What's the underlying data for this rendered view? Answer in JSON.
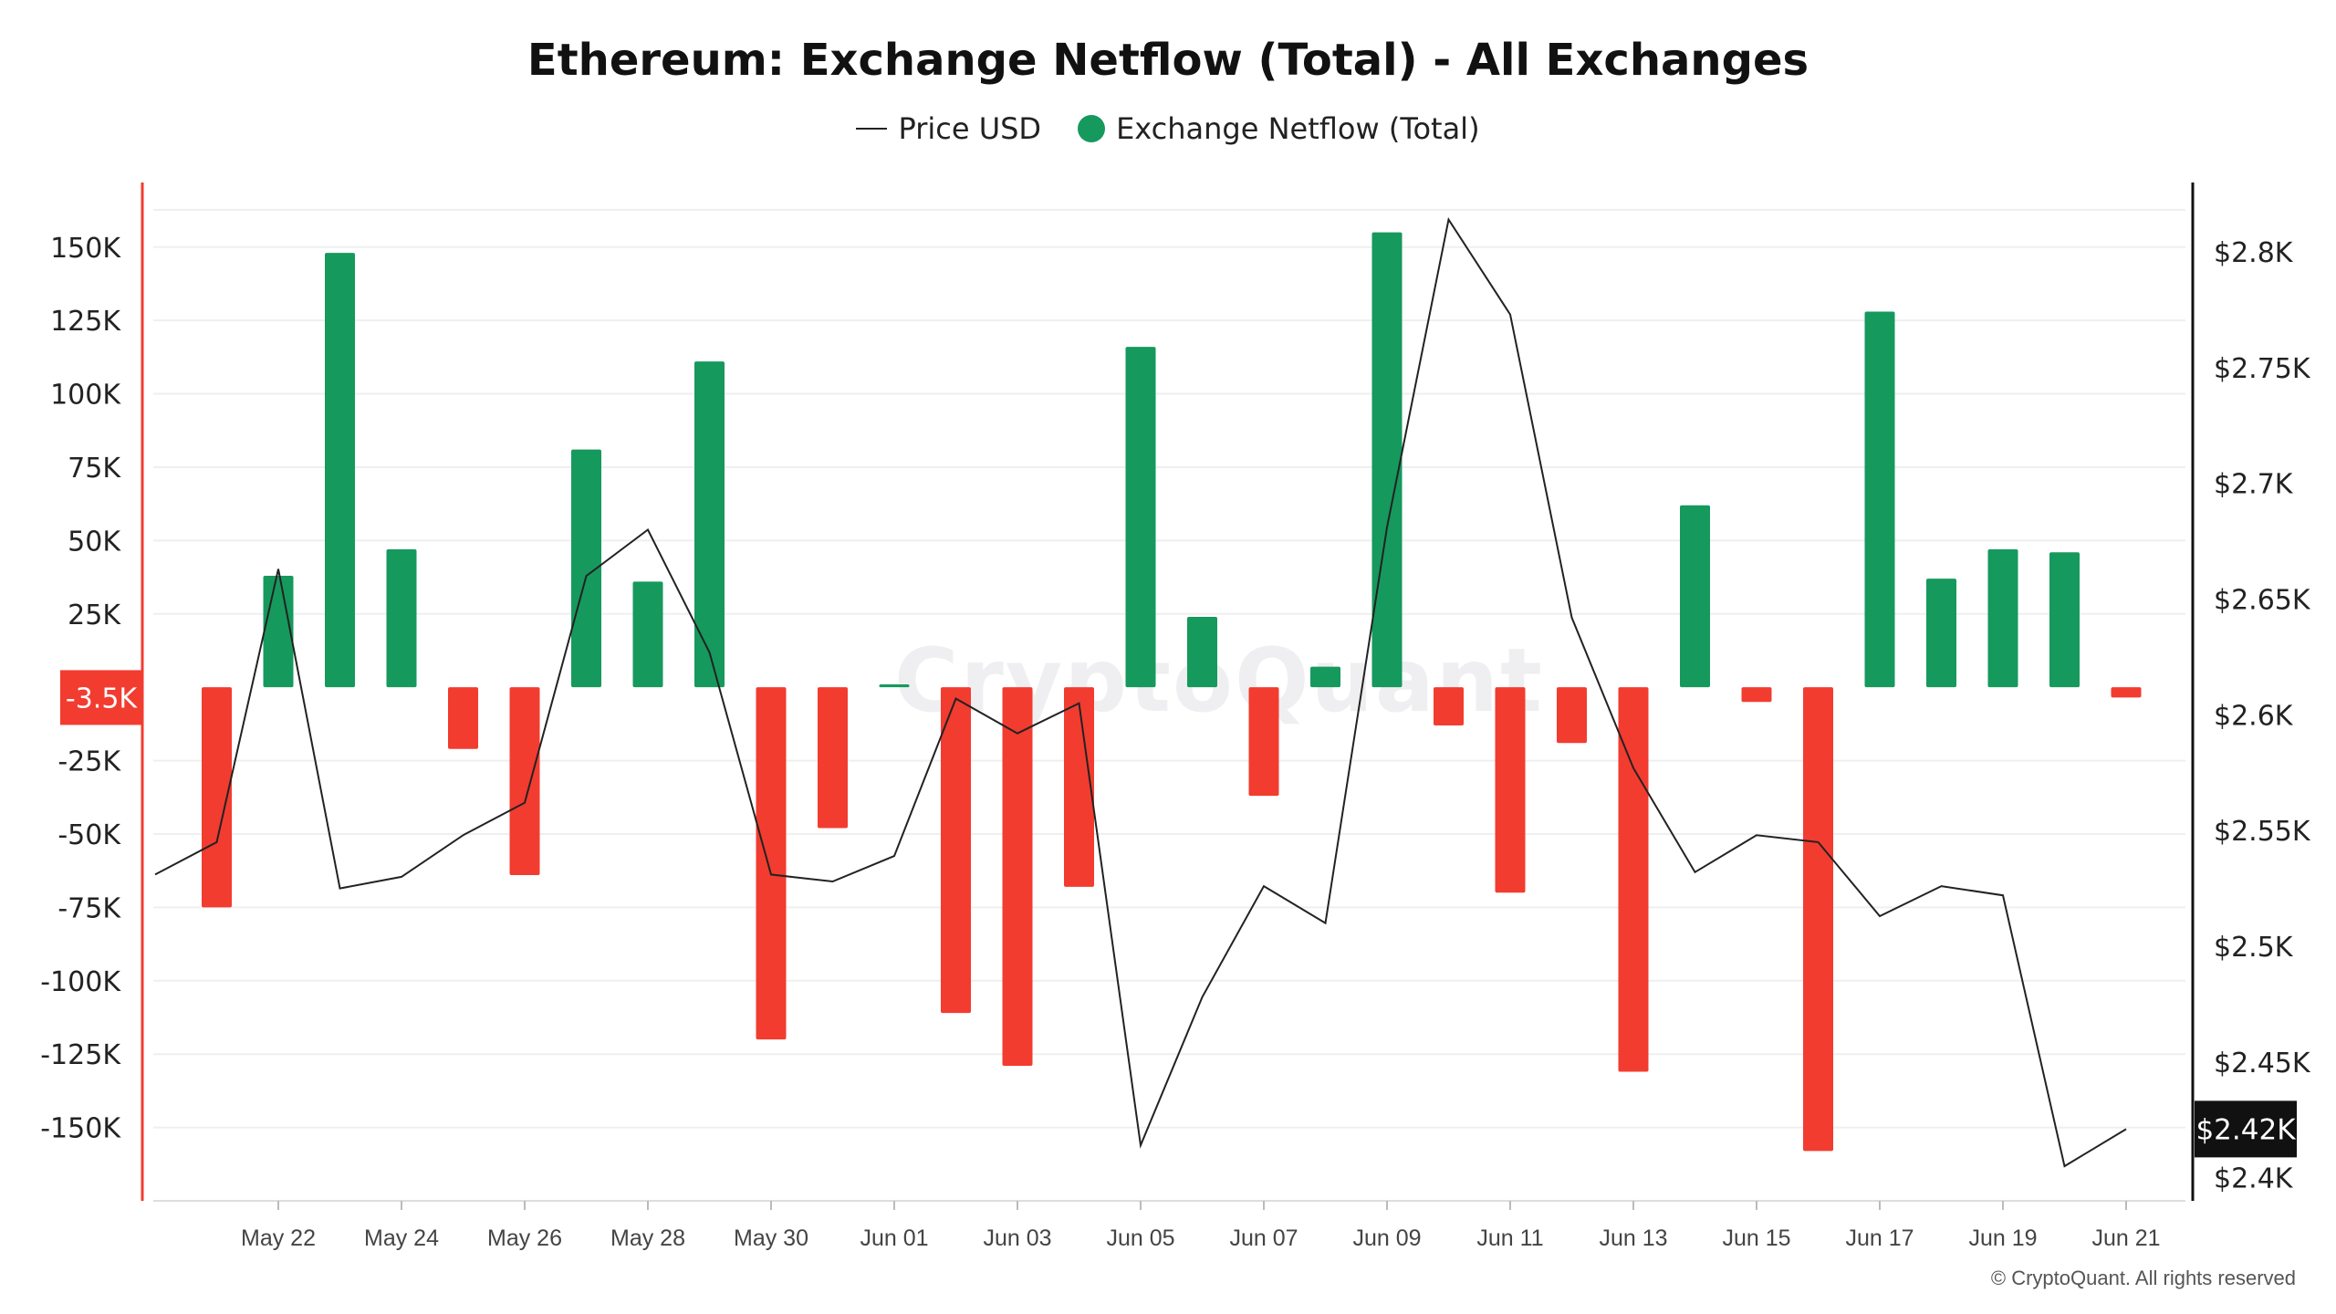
{
  "title": "Ethereum: Exchange Netflow (Total) - All Exchanges",
  "legend": {
    "price_label": "Price USD",
    "netflow_label": "Exchange Netflow (Total)"
  },
  "watermark": "CryptoQuant",
  "copyright": "© CryptoQuant. All rights reserved",
  "colors": {
    "positive": "#16995d",
    "negative": "#f23c30",
    "price_line": "#222222",
    "left_axis": "#f23c30",
    "right_axis": "#111111",
    "grid": "#efefef"
  },
  "chart_data": {
    "type": "bar",
    "x_tick_labels": [
      "May 22",
      "May 24",
      "May 26",
      "May 28",
      "May 30",
      "Jun 01",
      "Jun 03",
      "Jun 05",
      "Jun 07",
      "Jun 09",
      "Jun 11",
      "Jun 13",
      "Jun 15",
      "Jun 17",
      "Jun 19",
      "Jun 21"
    ],
    "left_axis": {
      "ticks": [
        150000,
        125000,
        100000,
        75000,
        50000,
        25000,
        -25000,
        -50000,
        -75000,
        -100000,
        -125000,
        -150000
      ],
      "tick_labels": [
        "150K",
        "125K",
        "100K",
        "75K",
        "50K",
        "25K",
        "-25K",
        "-50K",
        "-75K",
        "-100K",
        "-125K",
        "-150K"
      ],
      "range": [
        -175000,
        172000
      ],
      "current_value_label": "-3.5K",
      "current_value": -3500
    },
    "right_axis": {
      "ticks": [
        2800,
        2750,
        2700,
        2650,
        2600,
        2550,
        2500,
        2450,
        2400
      ],
      "tick_labels": [
        "$2.8K",
        "$2.75K",
        "$2.7K",
        "$2.65K",
        "$2.6K",
        "$2.55K",
        "$2.5K",
        "$2.45K",
        "$2.4K"
      ],
      "range": [
        2390,
        2830
      ],
      "current_value_label": "$2.42K",
      "current_value": 2421
    },
    "series": [
      {
        "name": "Exchange Netflow (Total)",
        "type": "bar",
        "values": [
          {
            "date": "2025-05-21",
            "value": -75000
          },
          {
            "date": "2025-05-22",
            "value": 38000
          },
          {
            "date": "2025-05-23",
            "value": 148000
          },
          {
            "date": "2025-05-24",
            "value": 47000
          },
          {
            "date": "2025-05-25",
            "value": -21000
          },
          {
            "date": "2025-05-26",
            "value": -64000
          },
          {
            "date": "2025-05-27",
            "value": 81000
          },
          {
            "date": "2025-05-28",
            "value": 36000
          },
          {
            "date": "2025-05-29",
            "value": 111000
          },
          {
            "date": "2025-05-30",
            "value": -120000
          },
          {
            "date": "2025-05-31",
            "value": -48000
          },
          {
            "date": "2025-06-01",
            "value": 1000
          },
          {
            "date": "2025-06-02",
            "value": -111000
          },
          {
            "date": "2025-06-03",
            "value": -129000
          },
          {
            "date": "2025-06-04",
            "value": -68000
          },
          {
            "date": "2025-06-05",
            "value": 116000
          },
          {
            "date": "2025-06-06",
            "value": 24000
          },
          {
            "date": "2025-06-07",
            "value": -37000
          },
          {
            "date": "2025-06-08",
            "value": 7000
          },
          {
            "date": "2025-06-09",
            "value": 155000
          },
          {
            "date": "2025-06-10",
            "value": -13000
          },
          {
            "date": "2025-06-11",
            "value": -70000
          },
          {
            "date": "2025-06-12",
            "value": -19000
          },
          {
            "date": "2025-06-13",
            "value": -131000
          },
          {
            "date": "2025-06-14",
            "value": 62000
          },
          {
            "date": "2025-06-15",
            "value": -5000
          },
          {
            "date": "2025-06-16",
            "value": -158000
          },
          {
            "date": "2025-06-17",
            "value": 128000
          },
          {
            "date": "2025-06-18",
            "value": 37000
          },
          {
            "date": "2025-06-19",
            "value": 47000
          },
          {
            "date": "2025-06-20",
            "value": 46000
          },
          {
            "date": "2025-06-21",
            "value": -3500
          }
        ]
      },
      {
        "name": "Price USD",
        "type": "line",
        "values": [
          {
            "date": "2025-05-20",
            "value": 2531
          },
          {
            "date": "2025-05-21",
            "value": 2545
          },
          {
            "date": "2025-05-22",
            "value": 2663
          },
          {
            "date": "2025-05-23",
            "value": 2525
          },
          {
            "date": "2025-05-24",
            "value": 2530
          },
          {
            "date": "2025-05-25",
            "value": 2548
          },
          {
            "date": "2025-05-26",
            "value": 2562
          },
          {
            "date": "2025-05-27",
            "value": 2660
          },
          {
            "date": "2025-05-28",
            "value": 2680
          },
          {
            "date": "2025-05-29",
            "value": 2627
          },
          {
            "date": "2025-05-30",
            "value": 2531
          },
          {
            "date": "2025-05-31",
            "value": 2528
          },
          {
            "date": "2025-06-01",
            "value": 2539
          },
          {
            "date": "2025-06-02",
            "value": 2607
          },
          {
            "date": "2025-06-03",
            "value": 2592
          },
          {
            "date": "2025-06-04",
            "value": 2605
          },
          {
            "date": "2025-06-05",
            "value": 2414
          },
          {
            "date": "2025-06-06",
            "value": 2478
          },
          {
            "date": "2025-06-07",
            "value": 2526
          },
          {
            "date": "2025-06-08",
            "value": 2510
          },
          {
            "date": "2025-06-09",
            "value": 2681
          },
          {
            "date": "2025-06-10",
            "value": 2814
          },
          {
            "date": "2025-06-11",
            "value": 2773
          },
          {
            "date": "2025-06-12",
            "value": 2642
          },
          {
            "date": "2025-06-13",
            "value": 2577
          },
          {
            "date": "2025-06-14",
            "value": 2532
          },
          {
            "date": "2025-06-15",
            "value": 2548
          },
          {
            "date": "2025-06-16",
            "value": 2545
          },
          {
            "date": "2025-06-17",
            "value": 2513
          },
          {
            "date": "2025-06-18",
            "value": 2526
          },
          {
            "date": "2025-06-19",
            "value": 2522
          },
          {
            "date": "2025-06-20",
            "value": 2405
          },
          {
            "date": "2025-06-21",
            "value": 2421
          }
        ]
      }
    ],
    "grid": true,
    "legend_position": "top-center"
  }
}
